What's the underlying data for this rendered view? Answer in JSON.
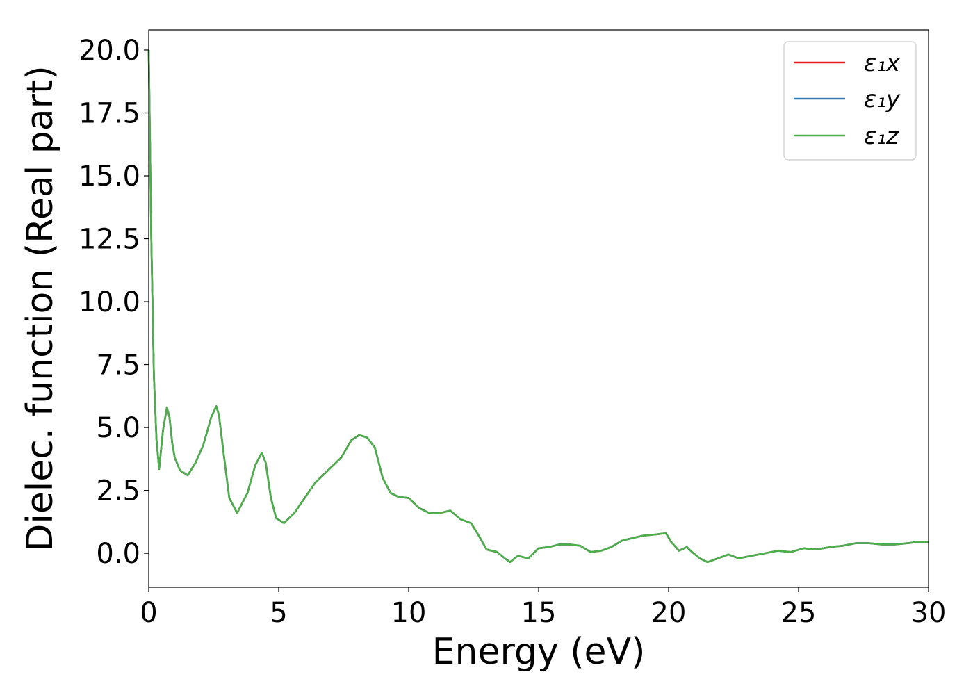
{
  "chart_data": {
    "type": "line",
    "xlabel": "Energy (eV)",
    "ylabel": "Dielec. function (Real part)",
    "xlim": [
      0,
      30
    ],
    "ylim": [
      -1.35,
      20.8
    ],
    "xticks": [
      0,
      5,
      10,
      15,
      20,
      25,
      30
    ],
    "xtick_labels": [
      "0",
      "5",
      "10",
      "15",
      "20",
      "25",
      "30"
    ],
    "yticks": [
      0,
      2.5,
      5,
      7.5,
      10,
      12.5,
      15,
      17.5,
      20
    ],
    "ytick_labels": [
      "0.0",
      "2.5",
      "5.0",
      "7.5",
      "10.0",
      "12.5",
      "15.0",
      "17.5",
      "20.0"
    ],
    "grid": false,
    "legend": {
      "position": "top-right",
      "entries": [
        "ε₁x",
        "ε₁y",
        "ε₁z"
      ]
    },
    "colors": {
      "x": "#e41a1c",
      "y": "#377eb8",
      "z": "#4daf4a"
    },
    "x": [
      0.0,
      0.1,
      0.2,
      0.3,
      0.4,
      0.55,
      0.7,
      0.8,
      0.9,
      1.0,
      1.2,
      1.5,
      1.8,
      2.1,
      2.4,
      2.6,
      2.7,
      2.9,
      3.1,
      3.4,
      3.8,
      4.1,
      4.35,
      4.5,
      4.7,
      4.9,
      5.2,
      5.6,
      6.0,
      6.4,
      6.9,
      7.4,
      7.8,
      8.1,
      8.4,
      8.7,
      9.0,
      9.3,
      9.6,
      10.0,
      10.4,
      10.8,
      11.2,
      11.6,
      12.0,
      12.4,
      12.7,
      13.0,
      13.4,
      13.7,
      13.9,
      14.2,
      14.6,
      15.0,
      15.4,
      15.8,
      16.2,
      16.6,
      17.0,
      17.4,
      17.8,
      18.2,
      18.6,
      19.0,
      19.5,
      19.9,
      20.1,
      20.4,
      20.7,
      20.9,
      21.2,
      21.5,
      21.9,
      22.3,
      22.7,
      23.2,
      23.7,
      24.2,
      24.7,
      25.2,
      25.7,
      26.2,
      26.7,
      27.2,
      27.7,
      28.2,
      28.7,
      29.2,
      29.6,
      30.0
    ],
    "series": [
      {
        "name": "ε₁x",
        "values": [
          20.0,
          12.5,
          7.0,
          4.5,
          3.35,
          4.9,
          5.8,
          5.4,
          4.4,
          3.8,
          3.3,
          3.1,
          3.6,
          4.3,
          5.4,
          5.85,
          5.5,
          3.8,
          2.2,
          1.6,
          2.4,
          3.5,
          4.0,
          3.6,
          2.2,
          1.4,
          1.2,
          1.6,
          2.2,
          2.8,
          3.3,
          3.8,
          4.5,
          4.7,
          4.6,
          4.2,
          3.0,
          2.4,
          2.25,
          2.2,
          1.8,
          1.6,
          1.6,
          1.7,
          1.35,
          1.2,
          0.7,
          0.15,
          0.05,
          -0.2,
          -0.35,
          -0.1,
          -0.2,
          0.2,
          0.25,
          0.35,
          0.35,
          0.3,
          0.05,
          0.1,
          0.25,
          0.5,
          0.6,
          0.7,
          0.75,
          0.8,
          0.45,
          0.1,
          0.25,
          0.05,
          -0.2,
          -0.35,
          -0.2,
          -0.05,
          -0.2,
          -0.1,
          0.0,
          0.1,
          0.05,
          0.2,
          0.15,
          0.25,
          0.3,
          0.4,
          0.4,
          0.35,
          0.35,
          0.4,
          0.45,
          0.45
        ]
      },
      {
        "name": "ε₁y",
        "values": [
          20.0,
          12.5,
          7.0,
          4.5,
          3.35,
          4.9,
          5.8,
          5.4,
          4.4,
          3.8,
          3.3,
          3.1,
          3.6,
          4.3,
          5.4,
          5.85,
          5.5,
          3.8,
          2.2,
          1.6,
          2.4,
          3.5,
          4.0,
          3.6,
          2.2,
          1.4,
          1.2,
          1.6,
          2.2,
          2.8,
          3.3,
          3.8,
          4.5,
          4.7,
          4.6,
          4.2,
          3.0,
          2.4,
          2.25,
          2.2,
          1.8,
          1.6,
          1.6,
          1.7,
          1.35,
          1.2,
          0.7,
          0.15,
          0.05,
          -0.2,
          -0.35,
          -0.1,
          -0.2,
          0.2,
          0.25,
          0.35,
          0.35,
          0.3,
          0.05,
          0.1,
          0.25,
          0.5,
          0.6,
          0.7,
          0.75,
          0.8,
          0.45,
          0.1,
          0.25,
          0.05,
          -0.2,
          -0.35,
          -0.2,
          -0.05,
          -0.2,
          -0.1,
          0.0,
          0.1,
          0.05,
          0.2,
          0.15,
          0.25,
          0.3,
          0.4,
          0.4,
          0.35,
          0.35,
          0.4,
          0.45,
          0.45
        ]
      },
      {
        "name": "ε₁z",
        "values": [
          20.0,
          12.5,
          7.0,
          4.5,
          3.35,
          4.9,
          5.8,
          5.4,
          4.4,
          3.8,
          3.3,
          3.1,
          3.6,
          4.3,
          5.4,
          5.85,
          5.5,
          3.8,
          2.2,
          1.6,
          2.4,
          3.5,
          4.0,
          3.6,
          2.2,
          1.4,
          1.2,
          1.6,
          2.2,
          2.8,
          3.3,
          3.8,
          4.5,
          4.7,
          4.6,
          4.2,
          3.0,
          2.4,
          2.25,
          2.2,
          1.8,
          1.6,
          1.6,
          1.7,
          1.35,
          1.2,
          0.7,
          0.15,
          0.05,
          -0.2,
          -0.35,
          -0.1,
          -0.2,
          0.2,
          0.25,
          0.35,
          0.35,
          0.3,
          0.05,
          0.1,
          0.25,
          0.5,
          0.6,
          0.7,
          0.75,
          0.8,
          0.45,
          0.1,
          0.25,
          0.05,
          -0.2,
          -0.35,
          -0.2,
          -0.05,
          -0.2,
          -0.1,
          0.0,
          0.1,
          0.05,
          0.2,
          0.15,
          0.25,
          0.3,
          0.4,
          0.4,
          0.35,
          0.35,
          0.4,
          0.45,
          0.45
        ]
      }
    ]
  }
}
